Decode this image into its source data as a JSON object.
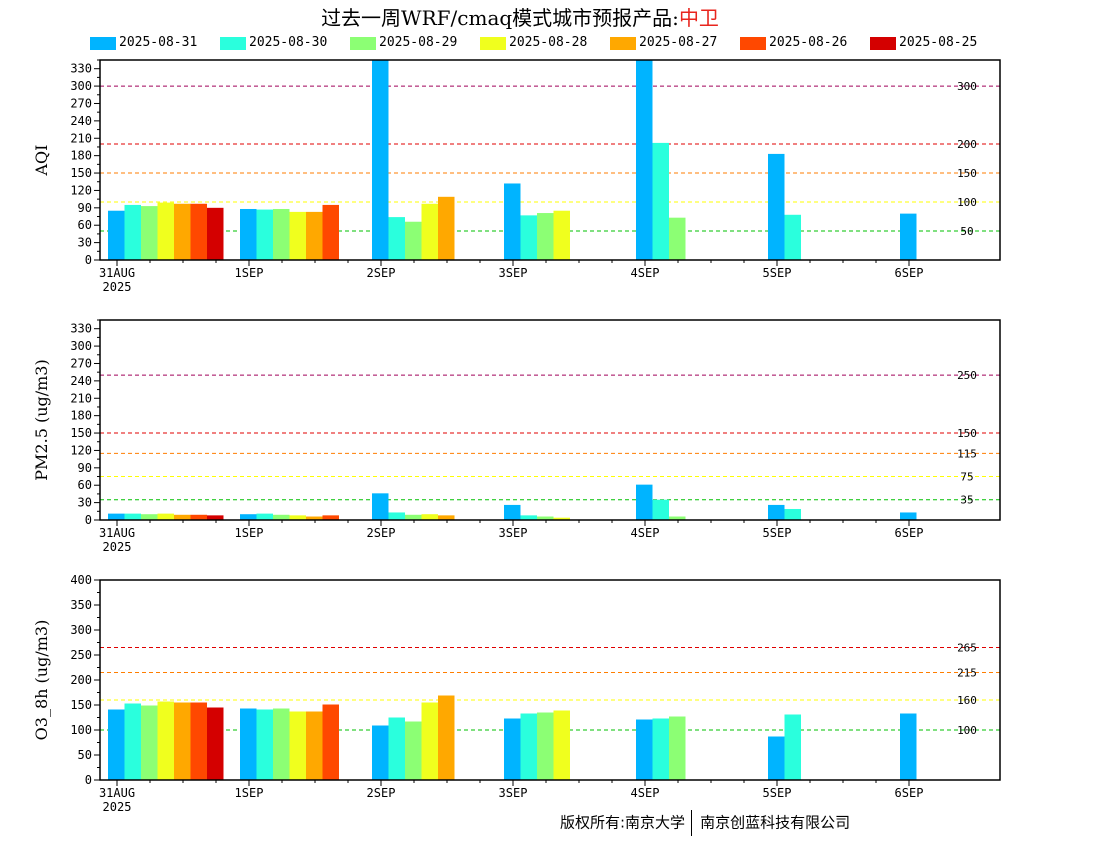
{
  "title": {
    "main": "过去一周WRF/cmaq模式城市预报产品:",
    "city": "中卫"
  },
  "legend": [
    {
      "label": "2025-08-31",
      "color": "#00b4ff"
    },
    {
      "label": "2025-08-30",
      "color": "#2affdd"
    },
    {
      "label": "2025-08-29",
      "color": "#8cff74"
    },
    {
      "label": "2025-08-28",
      "color": "#f0ff1e"
    },
    {
      "label": "2025-08-27",
      "color": "#ffa800"
    },
    {
      "label": "2025-08-26",
      "color": "#ff4800"
    },
    {
      "label": "2025-08-25",
      "color": "#d40000"
    }
  ],
  "footer": {
    "left": "版权所有:南京大学",
    "right": "南京创蓝科技有限公司"
  },
  "chart_data": [
    {
      "type": "bar",
      "ylabel": "AQI",
      "ylim": [
        0,
        345
      ],
      "yticks": [
        0,
        30,
        60,
        90,
        120,
        150,
        180,
        210,
        240,
        270,
        300,
        330
      ],
      "ytick_step": 30,
      "categories": [
        "31AUG\n2025",
        "1SEP",
        "2SEP",
        "3SEP",
        "4SEP",
        "5SEP",
        "6SEP"
      ],
      "series": [
        {
          "name": "2025-08-31",
          "values": [
            [
              0,
              85
            ],
            [
              1,
              88
            ],
            [
              2,
              350
            ],
            [
              3,
              132
            ],
            [
              4,
              350
            ],
            [
              5,
              183
            ],
            [
              6,
              80
            ]
          ]
        },
        {
          "name": "2025-08-30",
          "values": [
            [
              0,
              95
            ],
            [
              1,
              87
            ],
            [
              2,
              74
            ],
            [
              3,
              77
            ],
            [
              4,
              202
            ],
            [
              5,
              78
            ]
          ]
        },
        {
          "name": "2025-08-29",
          "values": [
            [
              0,
              93
            ],
            [
              1,
              88
            ],
            [
              2,
              66
            ],
            [
              3,
              81
            ],
            [
              4,
              73
            ]
          ]
        },
        {
          "name": "2025-08-28",
          "values": [
            [
              0,
              99
            ],
            [
              1,
              83
            ],
            [
              2,
              97
            ],
            [
              3,
              85
            ]
          ]
        },
        {
          "name": "2025-08-27",
          "values": [
            [
              0,
              97
            ],
            [
              1,
              83
            ],
            [
              2,
              109
            ]
          ]
        },
        {
          "name": "2025-08-26",
          "values": [
            [
              0,
              97
            ],
            [
              1,
              95
            ]
          ]
        },
        {
          "name": "2025-08-25",
          "values": [
            [
              0,
              90
            ]
          ]
        }
      ],
      "reference_lines": [
        {
          "value": 300,
          "label": "300",
          "color": "#a0005a"
        },
        {
          "value": 200,
          "label": "200",
          "color": "#e00000"
        },
        {
          "value": 150,
          "label": "150",
          "color": "#ff7e00"
        },
        {
          "value": 100,
          "label": "100",
          "color": "#ffff00"
        },
        {
          "value": 50,
          "label": "50",
          "color": "#00c000"
        }
      ]
    },
    {
      "type": "bar",
      "ylabel": "PM2.5 (ug/m3)",
      "ylim": [
        0,
        345
      ],
      "yticks": [
        0,
        30,
        60,
        90,
        120,
        150,
        180,
        210,
        240,
        270,
        300,
        330
      ],
      "ytick_step": 30,
      "categories": [
        "31AUG\n2025",
        "1SEP",
        "2SEP",
        "3SEP",
        "4SEP",
        "5SEP",
        "6SEP"
      ],
      "series": [
        {
          "name": "2025-08-31",
          "values": [
            [
              0,
              11
            ],
            [
              1,
              10
            ],
            [
              2,
              46
            ],
            [
              3,
              26
            ],
            [
              4,
              61
            ],
            [
              5,
              26
            ],
            [
              6,
              13
            ]
          ]
        },
        {
          "name": "2025-08-30",
          "values": [
            [
              0,
              11
            ],
            [
              1,
              11
            ],
            [
              2,
              13
            ],
            [
              3,
              8
            ],
            [
              4,
              35
            ],
            [
              5,
              19
            ]
          ]
        },
        {
          "name": "2025-08-29",
          "values": [
            [
              0,
              10
            ],
            [
              1,
              9
            ],
            [
              2,
              9
            ],
            [
              3,
              6
            ],
            [
              4,
              6
            ]
          ]
        },
        {
          "name": "2025-08-28",
          "values": [
            [
              0,
              11
            ],
            [
              1,
              8
            ],
            [
              2,
              10
            ],
            [
              3,
              4
            ]
          ]
        },
        {
          "name": "2025-08-27",
          "values": [
            [
              0,
              9
            ],
            [
              1,
              6
            ],
            [
              2,
              8
            ]
          ]
        },
        {
          "name": "2025-08-26",
          "values": [
            [
              0,
              9
            ],
            [
              1,
              8
            ]
          ]
        },
        {
          "name": "2025-08-25",
          "values": [
            [
              0,
              8
            ]
          ]
        }
      ],
      "reference_lines": [
        {
          "value": 250,
          "label": "250",
          "color": "#a0005a"
        },
        {
          "value": 150,
          "label": "150",
          "color": "#e00000"
        },
        {
          "value": 115,
          "label": "115",
          "color": "#ff7e00"
        },
        {
          "value": 75,
          "label": "75",
          "color": "#ffff00"
        },
        {
          "value": 35,
          "label": "35",
          "color": "#00c000"
        }
      ]
    },
    {
      "type": "bar",
      "ylabel": "O3_8h (ug/m3)",
      "ylim": [
        0,
        400
      ],
      "yticks": [
        0,
        50,
        100,
        150,
        200,
        250,
        300,
        350,
        400
      ],
      "ytick_step": 50,
      "categories": [
        "31AUG\n2025",
        "1SEP",
        "2SEP",
        "3SEP",
        "4SEP",
        "5SEP",
        "6SEP"
      ],
      "series": [
        {
          "name": "2025-08-31",
          "values": [
            [
              0,
              141
            ],
            [
              1,
              143
            ],
            [
              2,
              109
            ],
            [
              3,
              123
            ],
            [
              4,
              121
            ],
            [
              5,
              87
            ],
            [
              6,
              133
            ]
          ]
        },
        {
          "name": "2025-08-30",
          "values": [
            [
              0,
              153
            ],
            [
              1,
              141
            ],
            [
              2,
              125
            ],
            [
              3,
              133
            ],
            [
              4,
              123
            ],
            [
              5,
              131
            ]
          ]
        },
        {
          "name": "2025-08-29",
          "values": [
            [
              0,
              149
            ],
            [
              1,
              143
            ],
            [
              2,
              117
            ],
            [
              3,
              135
            ],
            [
              4,
              127
            ]
          ]
        },
        {
          "name": "2025-08-28",
          "values": [
            [
              0,
              157
            ],
            [
              1,
              137
            ],
            [
              2,
              155
            ],
            [
              3,
              139
            ]
          ]
        },
        {
          "name": "2025-08-27",
          "values": [
            [
              0,
              155
            ],
            [
              1,
              137
            ],
            [
              2,
              169
            ]
          ]
        },
        {
          "name": "2025-08-26",
          "values": [
            [
              0,
              155
            ],
            [
              1,
              151
            ]
          ]
        },
        {
          "name": "2025-08-25",
          "values": [
            [
              0,
              145
            ]
          ]
        }
      ],
      "reference_lines": [
        {
          "value": 265,
          "label": "265",
          "color": "#e00000"
        },
        {
          "value": 215,
          "label": "215",
          "color": "#ff7e00"
        },
        {
          "value": 160,
          "label": "160",
          "color": "#ffff00"
        },
        {
          "value": 100,
          "label": "100",
          "color": "#00c000"
        }
      ]
    }
  ]
}
